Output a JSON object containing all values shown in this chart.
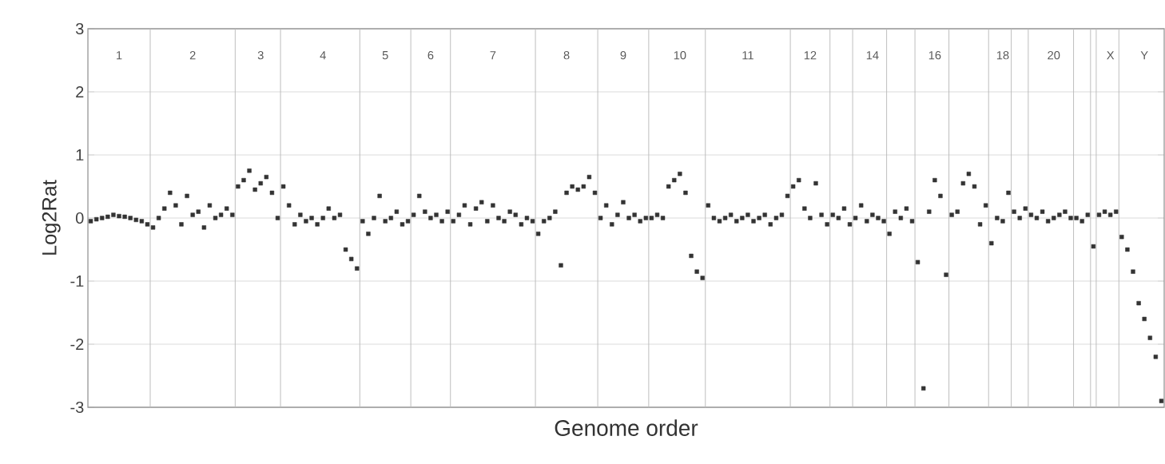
{
  "chart_data": {
    "type": "scatter",
    "xlabel": "Genome order",
    "ylabel": "Log2Rat",
    "ylim": [
      -3,
      3
    ],
    "yticks": [
      -3,
      -2,
      -1,
      0,
      1,
      2,
      3
    ],
    "grid": "y",
    "marker": "square",
    "categories": [
      null,
      null,
      null,
      null,
      null,
      "1",
      null,
      null,
      null,
      null,
      null,
      null,
      null,
      null,
      null,
      null,
      null,
      null,
      "2",
      null,
      null,
      null,
      null,
      null,
      null,
      null,
      null,
      null,
      null,
      null,
      "3",
      null,
      null,
      null,
      null,
      null,
      null,
      null,
      null,
      null,
      null,
      "4",
      null,
      null,
      null,
      null,
      null,
      null,
      null,
      null,
      null,
      null,
      "5",
      null,
      null,
      null,
      null,
      null,
      null,
      null,
      "6",
      null,
      null,
      null,
      null,
      null,
      null,
      null,
      null,
      null,
      null,
      "7",
      null,
      null,
      null,
      null,
      null,
      null,
      null,
      null,
      null,
      null,
      null,
      null,
      "8",
      null,
      null,
      null,
      null,
      null,
      null,
      null,
      null,
      null,
      "9",
      null,
      null,
      null,
      null,
      null,
      null,
      null,
      null,
      null,
      "10",
      null,
      null,
      null,
      null,
      null,
      null,
      null,
      null,
      null,
      null,
      null,
      "11",
      null,
      null,
      null,
      null,
      null,
      null,
      null,
      null,
      null,
      null,
      "12",
      null,
      null,
      null,
      null,
      null,
      null,
      null,
      null,
      null,
      null,
      "14",
      null,
      null,
      null,
      null,
      null,
      null,
      null,
      null,
      null,
      null,
      "16",
      null,
      null,
      null,
      null,
      null,
      null,
      null,
      null,
      null,
      null,
      null,
      "18",
      null,
      null,
      null,
      null,
      null,
      null,
      null,
      null,
      "20",
      null,
      null,
      null,
      null,
      null,
      null,
      null,
      null,
      null,
      "X",
      null,
      null,
      null,
      null,
      null,
      "Y",
      null,
      null,
      null
    ],
    "series": [
      {
        "color": "#333333",
        "values": [
          -0.05,
          -0.02,
          0,
          0.02,
          0.05,
          0.03,
          0.02,
          0,
          -0.03,
          -0.05,
          -0.1,
          -0.15,
          0,
          0.15,
          0.4,
          0.2,
          -0.1,
          0.35,
          0.05,
          0.1,
          -0.15,
          0.2,
          0,
          0.05,
          0.15,
          0.05,
          0.5,
          0.6,
          0.75,
          0.45,
          0.55,
          0.65,
          0.4,
          0,
          0.5,
          0.2,
          -0.1,
          0.05,
          -0.05,
          0,
          -0.1,
          0,
          0.15,
          0,
          0.05,
          -0.5,
          -0.65,
          -0.8,
          -0.05,
          -0.25,
          0,
          0.35,
          -0.05,
          0,
          0.1,
          -0.1,
          -0.05,
          0.05,
          0.35,
          0.1,
          0,
          0.05,
          -0.05,
          0.1,
          -0.05,
          0.05,
          0.2,
          -0.1,
          0.15,
          0.25,
          -0.05,
          0.2,
          0,
          -0.05,
          0.1,
          0.05,
          -0.1,
          0,
          -0.05,
          -0.25,
          -0.05,
          0,
          0.1,
          -0.75,
          0.4,
          0.5,
          0.45,
          0.5,
          0.65,
          0.4,
          0,
          0.2,
          -0.1,
          0.05,
          0.25,
          0,
          0.05,
          -0.05,
          0,
          0,
          0.05,
          0,
          0.5,
          0.6,
          0.7,
          0.4,
          -0.6,
          -0.85,
          -0.95,
          0.2,
          0,
          -0.05,
          0,
          0.05,
          -0.05,
          0,
          0.05,
          -0.05,
          0,
          0.05,
          -0.1,
          0,
          0.05,
          0.35,
          0.5,
          0.6,
          0.15,
          0,
          0.55,
          0.05,
          -0.1,
          0.05,
          0,
          0.15,
          -0.1,
          0,
          0.2,
          -0.05,
          0.05,
          0,
          -0.05,
          -0.25,
          0.1,
          0,
          0.15,
          -0.05,
          -0.7,
          -2.7,
          0.1,
          0.6,
          0.35,
          -0.9,
          0.05,
          0.1,
          0.55,
          0.7,
          0.5,
          -0.1,
          0.2,
          -0.4,
          0,
          -0.05,
          0.4,
          0.1,
          0,
          0.15,
          0.05,
          0,
          0.1,
          -0.05,
          0,
          0.05,
          0.1,
          0,
          0,
          -0.05,
          0.05,
          -0.45,
          0.05,
          0.1,
          0.05,
          0.1,
          -0.3,
          -0.5,
          -0.85,
          -1.35,
          -1.6,
          -1.9,
          -2.2,
          -2.9
        ]
      }
    ]
  }
}
